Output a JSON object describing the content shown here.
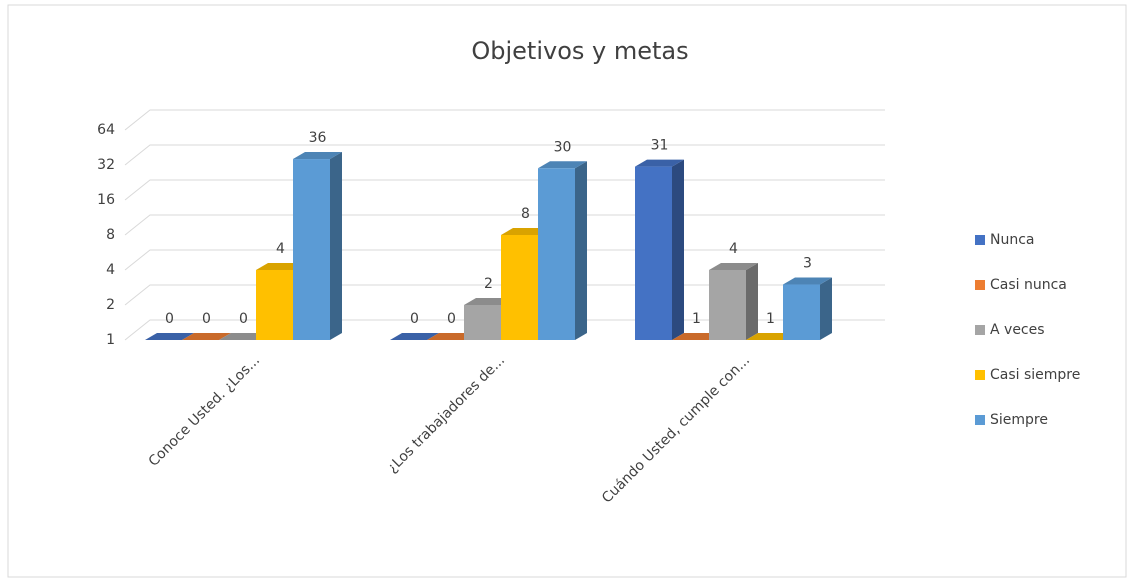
{
  "chart_data": {
    "type": "bar3d",
    "title": "Objetivos y metas",
    "categories": [
      "Conoce Usted. ¿Los...",
      "¿Los trabajadores de...",
      "Cuándo Usted, cumple con..."
    ],
    "series": [
      {
        "name": "Nunca",
        "color": "#4472c4",
        "values": [
          0,
          0,
          31
        ]
      },
      {
        "name": "Casi nunca",
        "color": "#ed7d31",
        "values": [
          0,
          0,
          1
        ]
      },
      {
        "name": "A veces",
        "color": "#a5a5a5",
        "values": [
          0,
          2,
          4
        ]
      },
      {
        "name": "Casi siempre",
        "color": "#ffc000",
        "values": [
          4,
          8,
          1
        ]
      },
      {
        "name": "Siempre",
        "color": "#5b9bd5",
        "values": [
          36,
          30,
          3
        ]
      }
    ],
    "ylim": [
      1,
      64
    ],
    "yticks": [
      1,
      2,
      4,
      8,
      16,
      32,
      64
    ],
    "log_base": 2,
    "grid": true,
    "legend": "right"
  }
}
